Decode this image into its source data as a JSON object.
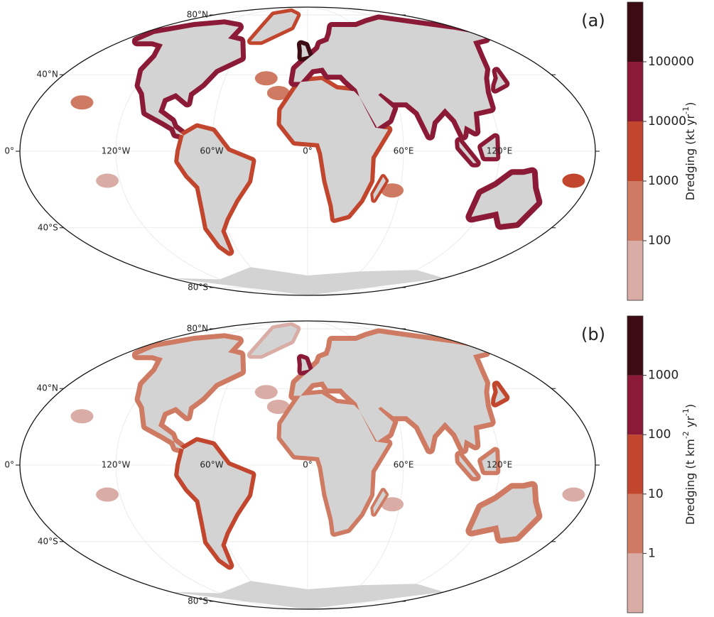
{
  "panels": [
    {
      "label": "(a)",
      "lat_labels": [
        "80°N",
        "40°N",
        "0°",
        "40°S",
        "80°S"
      ],
      "lon_labels": [
        "120°W",
        "60°W",
        "0°",
        "60°E",
        "120°E"
      ],
      "colorbar": {
        "title": [
          {
            "text": "Dredging (kt yr"
          },
          {
            "text": "-1",
            "sup": true
          },
          {
            "text": ")"
          }
        ],
        "scale": "log",
        "lim": [
          10,
          1000000
        ],
        "ticks": [
          100,
          1000,
          10000,
          100000
        ],
        "colors": [
          "#d9ada5",
          "#cf7b63",
          "#c2452e",
          "#8b1a36",
          "#3d0b12"
        ]
      }
    },
    {
      "label": "(b)",
      "lat_labels": [
        "80°N",
        "40°N",
        "0°",
        "40°S",
        "80°S"
      ],
      "lon_labels": [
        "120°W",
        "60°W",
        "0°",
        "60°E",
        "120°E"
      ],
      "colorbar": {
        "title": [
          {
            "text": "Dredging (t km"
          },
          {
            "text": "-2",
            "sup": true
          },
          {
            "text": " yr"
          },
          {
            "text": "-1",
            "sup": true
          },
          {
            "text": ")"
          }
        ],
        "scale": "log",
        "lim": [
          0.1,
          10000
        ],
        "ticks": [
          1,
          10,
          100,
          1000
        ],
        "colors": [
          "#d9ada5",
          "#cf7b63",
          "#c2452e",
          "#8b1a36",
          "#3d0b12"
        ]
      }
    }
  ]
}
